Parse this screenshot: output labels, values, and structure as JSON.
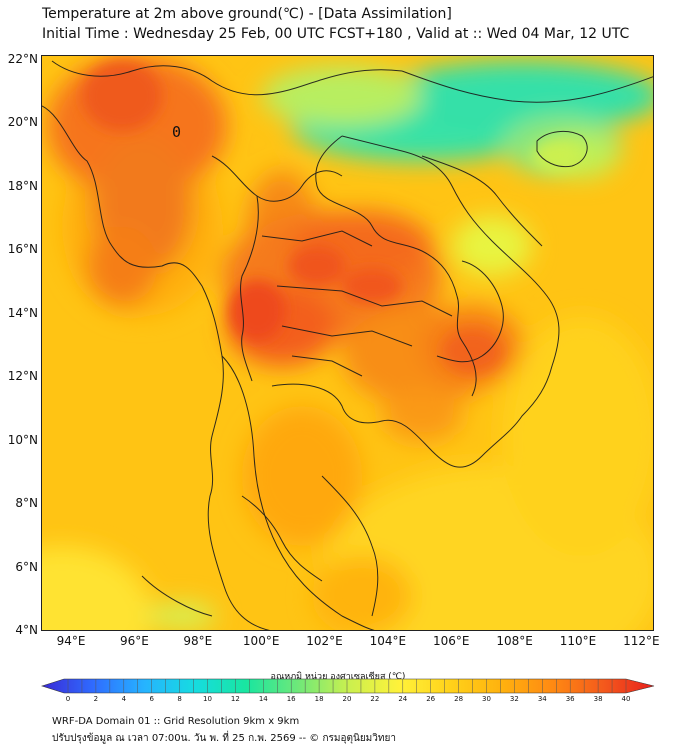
{
  "title": {
    "line1": "Temperature at 2m above ground(℃) - [Data Assimilation]",
    "line2": "Initial Time : Wednesday 25 Feb, 00 UTC FCST+180 , Valid at :: Wed 04 Mar, 12 UTC"
  },
  "map": {
    "lat_ticks": [
      {
        "value": 22,
        "label": "22°N"
      },
      {
        "value": 20,
        "label": "20°N"
      },
      {
        "value": 18,
        "label": "18°N"
      },
      {
        "value": 16,
        "label": "16°N"
      },
      {
        "value": 14,
        "label": "14°N"
      },
      {
        "value": 12,
        "label": "12°N"
      },
      {
        "value": 10,
        "label": "10°N"
      },
      {
        "value": 8,
        "label": "8°N"
      },
      {
        "value": 6,
        "label": "6°N"
      },
      {
        "value": 4,
        "label": "4°N"
      }
    ],
    "lon_ticks": [
      {
        "value": 94,
        "label": "94°E"
      },
      {
        "value": 96,
        "label": "96°E"
      },
      {
        "value": 98,
        "label": "98°E"
      },
      {
        "value": 100,
        "label": "100°E"
      },
      {
        "value": 102,
        "label": "102°E"
      },
      {
        "value": 104,
        "label": "104°E"
      },
      {
        "value": 106,
        "label": "106°E"
      },
      {
        "value": 108,
        "label": "108°E"
      },
      {
        "value": 110,
        "label": "110°E"
      },
      {
        "value": 112,
        "label": "112°E"
      }
    ],
    "lon_range": [
      93.05,
      112.4
    ],
    "lat_range": [
      4.0,
      22.15
    ],
    "annotation": "0",
    "variable": "2m air temperature",
    "unit": "°C"
  },
  "colorbar": {
    "title": "อุณหภูมิ หน่วย องศาเซลเซียส (℃)",
    "min": 0,
    "max": 40,
    "step": 2,
    "labels": [
      "0",
      "2",
      "4",
      "6",
      "8",
      "10",
      "12",
      "14",
      "16",
      "18",
      "20",
      "22",
      "24",
      "26",
      "28",
      "30",
      "32",
      "34",
      "36",
      "38",
      "40"
    ],
    "stops": [
      "#3a2bd6",
      "#2f6bff",
      "#26b3ff",
      "#16dce0",
      "#19e6a0",
      "#6de87a",
      "#c9f04f",
      "#fff23a",
      "#ffd21a",
      "#ffb20e",
      "#ff8a12",
      "#f45a1c",
      "#e8201c"
    ]
  },
  "footer": {
    "line1": "WRF-DA Domain 01 :: Grid Resolution 9km x 9km",
    "line2": "ปรับปรุงข้อมูล ณ เวลา 07:00น. วัน พ. ที่ 25 ก.พ. 2569 -- © กรมอุตุนิยมวิทยา"
  }
}
